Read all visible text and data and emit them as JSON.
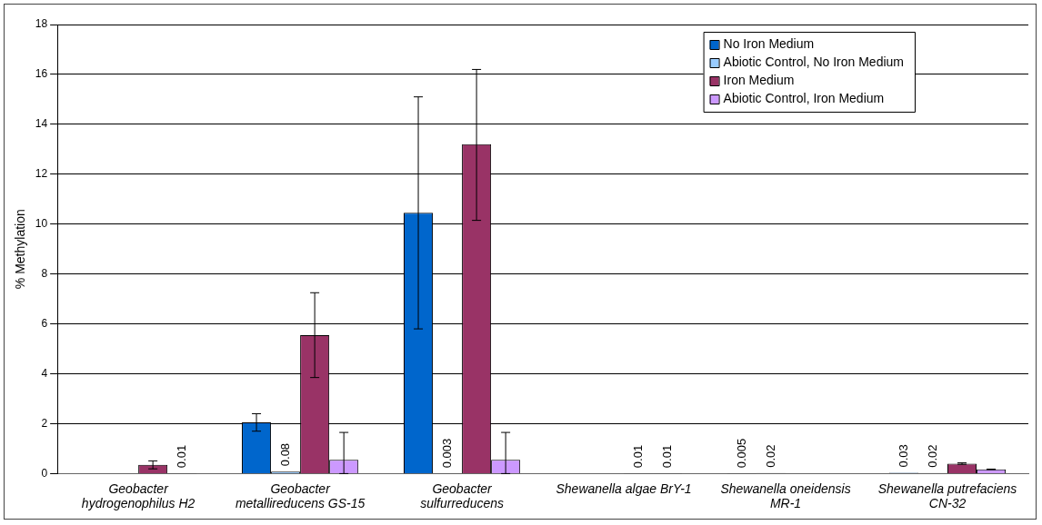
{
  "chart_data": {
    "type": "bar",
    "ylabel": "% Methylation",
    "categories": [
      "Geobacter\nhydrogenophilus H2",
      "Geobacter\nmetallireducens GS-15",
      "Geobacter\nsulfurreducens",
      "Shewanella algae BrY-1",
      "Shewanella oneidensis\nMR-1",
      "Shewanella putrefaciens\nCN-32"
    ],
    "ylim": [
      0,
      18
    ],
    "yticks": [
      0,
      2,
      4,
      6,
      8,
      10,
      12,
      14,
      16,
      18
    ],
    "grid": "y",
    "legend": "top right",
    "series": [
      {
        "name": "No Iron Medium",
        "color": "#0066cc",
        "values": [
          0,
          2.05,
          10.45,
          0,
          0.005,
          0.03
        ],
        "errors": [
          null,
          0.35,
          [
            5.8,
            15.1
          ],
          null,
          null,
          null
        ],
        "value_labels": [
          null,
          null,
          null,
          null,
          "0.005",
          "0.03"
        ]
      },
      {
        "name": "Abiotic Control, No Iron Medium",
        "color": "#99ccff",
        "values": [
          null,
          0.08,
          0.003,
          null,
          0.02,
          0.02
        ],
        "value_labels": [
          null,
          "0.08",
          "0.003",
          null,
          "0.02",
          "0.02"
        ]
      },
      {
        "name": "Iron Medium",
        "color": "#993366",
        "values": [
          0.35,
          5.55,
          13.2,
          0.01,
          0,
          0.4
        ],
        "errors": [
          0.16,
          1.7,
          [
            10.15,
            16.2
          ],
          null,
          null,
          0.03
        ],
        "value_labels": [
          null,
          null,
          null,
          "0.01",
          null,
          null
        ]
      },
      {
        "name": "Abiotic Control, Iron Medium",
        "color": "#cc99ff",
        "values": [
          0.01,
          0.55,
          0.55,
          0.01,
          0,
          0.17
        ],
        "errors": [
          null,
          [
            0,
            1.65
          ],
          [
            0,
            1.65
          ],
          null,
          null,
          0.01
        ],
        "value_labels": [
          "0.01",
          null,
          null,
          "0.01",
          null,
          null
        ]
      }
    ]
  }
}
